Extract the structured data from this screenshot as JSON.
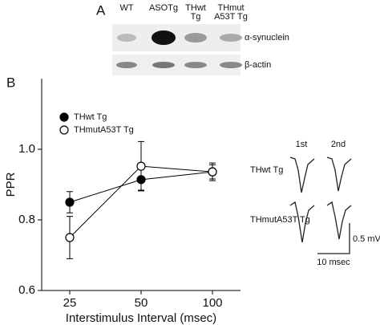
{
  "panel_a": {
    "label": "A",
    "lanes": [
      [
        "WT"
      ],
      [
        "ASOTg"
      ],
      [
        "THwt",
        "Tg"
      ],
      [
        "THmut",
        "A53T Tg"
      ]
    ],
    "rows": [
      "α-synuclein",
      "β-actin"
    ]
  },
  "chart_data": {
    "type": "line",
    "panel_label": "B",
    "x_label": "Interstimulus Interval (msec)",
    "y_label": "PPR",
    "categories": [
      "25",
      "50",
      "100"
    ],
    "series": [
      {
        "name": "THwt Tg",
        "color": "#000000",
        "fill": "#000000",
        "values": [
          0.85,
          0.914,
          0.936
        ],
        "errors": [
          0.03,
          0.03,
          0.02
        ]
      },
      {
        "name": "THmutA53T Tg",
        "color": "#000000",
        "fill": "#ffffff",
        "values": [
          0.75,
          0.952,
          0.936
        ],
        "errors": [
          0.06,
          0.07,
          0.025
        ]
      }
    ],
    "ylim": [
      0.6,
      1.2
    ],
    "yticks": [
      0.6,
      0.8,
      {
        "value": 1,
        "label": "1.0"
      }
    ],
    "grid": false
  },
  "traces": {
    "columns": [
      "1st",
      "2nd"
    ],
    "rows": [
      "THwt Tg",
      "THmutA53T Tg"
    ],
    "scale_y": "0.5 mV",
    "scale_x": "10 msec"
  }
}
